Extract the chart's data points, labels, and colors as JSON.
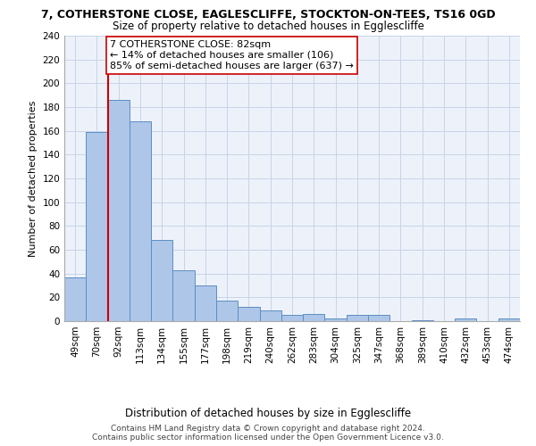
{
  "title": "7, COTHERSTONE CLOSE, EAGLESCLIFFE, STOCKTON-ON-TEES, TS16 0GD",
  "subtitle": "Size of property relative to detached houses in Egglescliffe",
  "xlabel": "Distribution of detached houses by size in Egglescliffe",
  "ylabel": "Number of detached properties",
  "bar_values": [
    37,
    159,
    186,
    168,
    68,
    43,
    30,
    17,
    12,
    9,
    5,
    6,
    2,
    5,
    5,
    0,
    1,
    0,
    2,
    0,
    2
  ],
  "bar_labels": [
    "49sqm",
    "70sqm",
    "92sqm",
    "113sqm",
    "134sqm",
    "155sqm",
    "177sqm",
    "198sqm",
    "219sqm",
    "240sqm",
    "262sqm",
    "283sqm",
    "304sqm",
    "325sqm",
    "347sqm",
    "368sqm",
    "389sqm",
    "410sqm",
    "432sqm",
    "453sqm",
    "474sqm"
  ],
  "bar_color": "#aec6e8",
  "bar_edge_color": "#5b8ec4",
  "grid_color": "#c8d4e8",
  "background_color": "#edf2fa",
  "vline_color": "#cc0000",
  "annotation_text": "7 COTHERSTONE CLOSE: 82sqm\n← 14% of detached houses are smaller (106)\n85% of semi-detached houses are larger (637) →",
  "annotation_box_color": "#ffffff",
  "annotation_box_edge": "#cc0000",
  "ylim": [
    0,
    240
  ],
  "yticks": [
    0,
    20,
    40,
    60,
    80,
    100,
    120,
    140,
    160,
    180,
    200,
    220,
    240
  ],
  "footer_line1": "Contains HM Land Registry data © Crown copyright and database right 2024.",
  "footer_line2": "Contains public sector information licensed under the Open Government Licence v3.0.",
  "title_fontsize": 9,
  "subtitle_fontsize": 8.5,
  "xlabel_fontsize": 8.5,
  "ylabel_fontsize": 8,
  "tick_fontsize": 7.5,
  "annotation_fontsize": 8,
  "footer_fontsize": 6.5
}
